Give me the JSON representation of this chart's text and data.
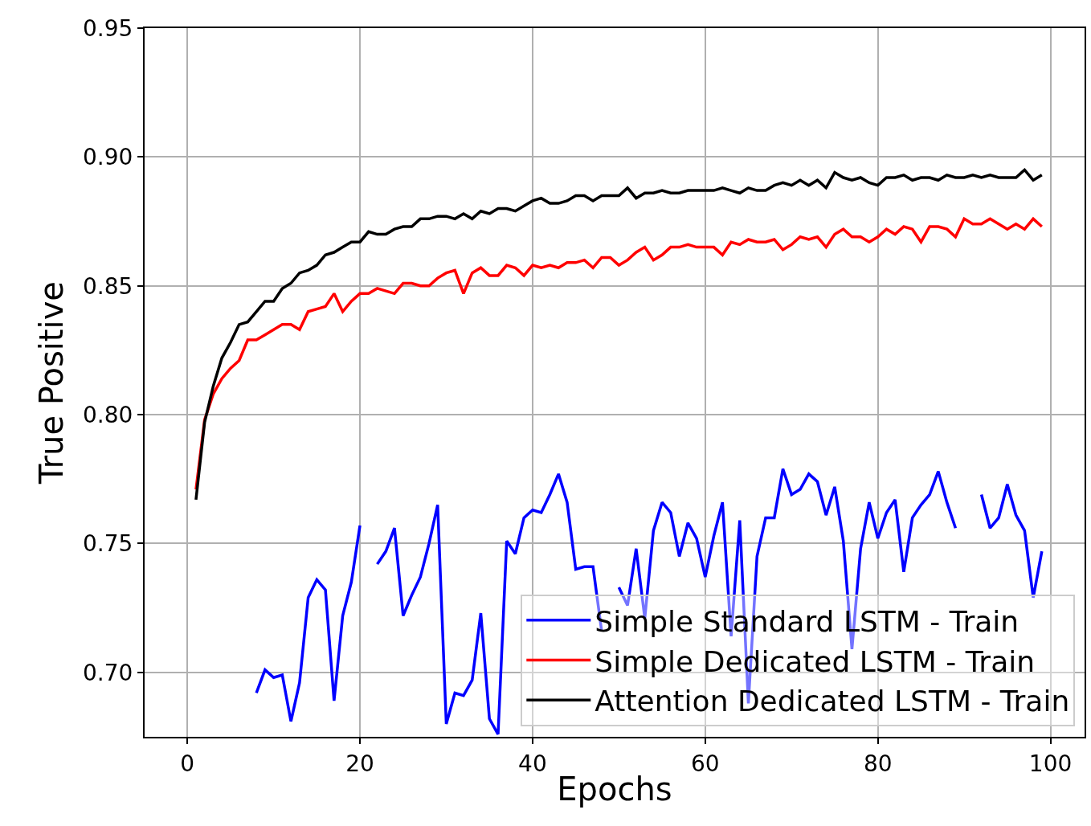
{
  "chart_data": {
    "type": "line",
    "xlabel": "Epochs",
    "ylabel": "True Positive",
    "x": [
      1,
      2,
      3,
      4,
      5,
      6,
      7,
      8,
      9,
      10,
      11,
      12,
      13,
      14,
      15,
      16,
      17,
      18,
      19,
      20,
      21,
      22,
      23,
      24,
      25,
      26,
      27,
      28,
      29,
      30,
      31,
      32,
      33,
      34,
      35,
      36,
      37,
      38,
      39,
      40,
      41,
      42,
      43,
      44,
      45,
      46,
      47,
      48,
      49,
      50,
      51,
      52,
      53,
      54,
      55,
      56,
      57,
      58,
      59,
      60,
      61,
      62,
      63,
      64,
      65,
      66,
      67,
      68,
      69,
      70,
      71,
      72,
      73,
      74,
      75,
      76,
      77,
      78,
      79,
      80,
      81,
      82,
      83,
      84,
      85,
      86,
      87,
      88,
      89,
      90,
      91,
      92,
      93,
      94,
      95,
      96,
      97,
      98,
      99
    ],
    "xlim": [
      -4.95,
      103.95
    ],
    "xticks": [
      0,
      20,
      40,
      60,
      80,
      100
    ],
    "ylim": [
      0.675,
      0.95
    ],
    "yticks": [
      {
        "value": 0.7,
        "label": "0.70"
      },
      {
        "value": 0.75,
        "label": "0.75"
      },
      {
        "value": 0.8,
        "label": "0.80"
      },
      {
        "value": 0.85,
        "label": "0.85"
      },
      {
        "value": 0.9,
        "label": "0.90"
      },
      {
        "value": 0.95,
        "label": "0.95"
      }
    ],
    "grid": true,
    "legend": "bottom right",
    "line_style": "solid",
    "series": [
      {
        "name": "Simple Standard LSTM - Train",
        "color": "#0000ff",
        "values": [
          null,
          null,
          null,
          null,
          null,
          null,
          null,
          0.692,
          0.701,
          0.698,
          0.699,
          0.681,
          0.696,
          0.729,
          0.736,
          0.732,
          0.689,
          0.722,
          0.735,
          0.757,
          null,
          0.742,
          0.747,
          0.756,
          0.722,
          0.73,
          0.737,
          0.75,
          0.765,
          0.68,
          0.692,
          0.691,
          0.697,
          0.723,
          0.682,
          0.676,
          0.751,
          0.746,
          0.76,
          0.763,
          0.762,
          0.769,
          0.777,
          0.766,
          0.74,
          0.741,
          0.741,
          0.716,
          null,
          0.733,
          0.726,
          0.748,
          0.721,
          0.755,
          0.766,
          0.762,
          0.745,
          0.758,
          0.752,
          0.737,
          0.753,
          0.766,
          0.714,
          0.759,
          0.688,
          0.745,
          0.76,
          0.76,
          0.779,
          0.769,
          0.771,
          0.777,
          0.774,
          0.761,
          0.772,
          0.751,
          0.709,
          0.748,
          0.766,
          0.752,
          0.762,
          0.767,
          0.739,
          0.76,
          0.765,
          0.769,
          0.778,
          0.766,
          0.756,
          null,
          null,
          0.769,
          0.756,
          0.76,
          0.773,
          0.761,
          0.755,
          0.729,
          0.747
        ]
      },
      {
        "name": "Simple Dedicated LSTM - Train",
        "color": "#ff0000",
        "values": [
          0.771,
          0.798,
          0.808,
          0.814,
          0.818,
          0.821,
          0.829,
          0.829,
          0.831,
          0.833,
          0.835,
          0.835,
          0.833,
          0.84,
          0.841,
          0.842,
          0.847,
          0.84,
          0.844,
          0.847,
          0.847,
          0.849,
          0.848,
          0.847,
          0.851,
          0.851,
          0.85,
          0.85,
          0.853,
          0.855,
          0.856,
          0.847,
          0.855,
          0.857,
          0.854,
          0.854,
          0.858,
          0.857,
          0.854,
          0.858,
          0.857,
          0.858,
          0.857,
          0.859,
          0.859,
          0.86,
          0.857,
          0.861,
          0.861,
          0.858,
          0.86,
          0.863,
          0.865,
          0.86,
          0.862,
          0.865,
          0.865,
          0.866,
          0.865,
          0.865,
          0.865,
          0.862,
          0.867,
          0.866,
          0.868,
          0.867,
          0.867,
          0.868,
          0.864,
          0.866,
          0.869,
          0.868,
          0.869,
          0.865,
          0.87,
          0.872,
          0.869,
          0.869,
          0.867,
          0.869,
          0.872,
          0.87,
          0.873,
          0.872,
          0.867,
          0.873,
          0.873,
          0.872,
          0.869,
          0.876,
          0.874,
          0.874,
          0.876,
          0.874,
          0.872,
          0.874,
          0.872,
          0.876,
          0.873
        ]
      },
      {
        "name": "Attention Dedicated LSTM - Train",
        "color": "#000000",
        "values": [
          0.767,
          0.797,
          0.811,
          0.822,
          0.828,
          0.835,
          0.836,
          0.84,
          0.844,
          0.844,
          0.849,
          0.851,
          0.855,
          0.856,
          0.858,
          0.862,
          0.863,
          0.865,
          0.867,
          0.867,
          0.871,
          0.87,
          0.87,
          0.872,
          0.873,
          0.873,
          0.876,
          0.876,
          0.877,
          0.877,
          0.876,
          0.878,
          0.876,
          0.879,
          0.878,
          0.88,
          0.88,
          0.879,
          0.881,
          0.883,
          0.884,
          0.882,
          0.882,
          0.883,
          0.885,
          0.885,
          0.883,
          0.885,
          0.885,
          0.885,
          0.888,
          0.884,
          0.886,
          0.886,
          0.887,
          0.886,
          0.886,
          0.887,
          0.887,
          0.887,
          0.887,
          0.888,
          0.887,
          0.886,
          0.888,
          0.887,
          0.887,
          0.889,
          0.89,
          0.889,
          0.891,
          0.889,
          0.891,
          0.888,
          0.894,
          0.892,
          0.891,
          0.892,
          0.89,
          0.889,
          0.892,
          0.892,
          0.893,
          0.891,
          0.892,
          0.892,
          0.891,
          0.893,
          0.892,
          0.892,
          0.893,
          0.892,
          0.893,
          0.892,
          0.892,
          0.892,
          0.895,
          0.891,
          0.893
        ]
      }
    ]
  }
}
